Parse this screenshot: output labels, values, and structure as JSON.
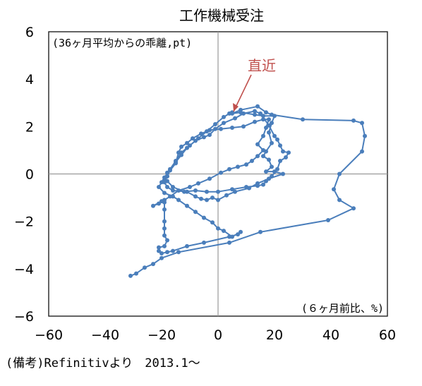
{
  "chart_data": {
    "type": "scatter",
    "title": "工作機械受注",
    "inner_label": "(36ヶ月平均からの乖離,pt)",
    "x_unit_label": "(６ヶ月前比、%)",
    "source_note": "(備考)Refinitivより　2013.1～",
    "annotation": {
      "text": "直近",
      "color": "#c0504d"
    },
    "xlim": [
      -60,
      60
    ],
    "ylim": [
      -6,
      6
    ],
    "x_ticks": [
      -60,
      -40,
      -20,
      0,
      20,
      40,
      60
    ],
    "y_ticks": [
      -6,
      -4,
      -2,
      0,
      2,
      4,
      6
    ],
    "x_tick_labels": [
      "−60",
      "−40",
      "−20",
      "0",
      "20",
      "40",
      "60"
    ],
    "y_tick_labels": [
      "−6",
      "−4",
      "−2",
      "0",
      "2",
      "4",
      "6"
    ],
    "grid": false,
    "series_color": "#4a7ebb",
    "series": [
      {
        "name": "",
        "points": [
          [
            -31,
            -4.3
          ],
          [
            -29,
            -4.2
          ],
          [
            -26,
            -3.95
          ],
          [
            -23,
            -3.8
          ],
          [
            -20,
            -3.55
          ],
          [
            -14,
            -3.3
          ],
          [
            4,
            -2.9
          ],
          [
            15,
            -2.45
          ],
          [
            39,
            -1.95
          ],
          [
            48,
            -1.45
          ],
          [
            43,
            -1.1
          ],
          [
            41,
            -0.65
          ],
          [
            43,
            0
          ],
          [
            51,
            0.95
          ],
          [
            52,
            1.6
          ],
          [
            51,
            2.15
          ],
          [
            48,
            2.25
          ],
          [
            30,
            2.3
          ],
          [
            19,
            2.5
          ],
          [
            17,
            2.6
          ],
          [
            14,
            2.85
          ],
          [
            8,
            2.7
          ],
          [
            5,
            2.55
          ],
          [
            8,
            2.6
          ],
          [
            13,
            2.5
          ],
          [
            16,
            2.45
          ],
          [
            20,
            2.45
          ],
          [
            19,
            2.15
          ],
          [
            18,
            1.75
          ],
          [
            19,
            1.3
          ],
          [
            17,
            0.95
          ],
          [
            16,
            0.75
          ],
          [
            18,
            0.6
          ],
          [
            19,
            0.3
          ],
          [
            17,
            0.1
          ],
          [
            20,
            0.1
          ],
          [
            23,
            0
          ],
          [
            18,
            -0.2
          ],
          [
            14,
            -0.4
          ],
          [
            11,
            -0.6
          ],
          [
            6,
            -0.75
          ],
          [
            3,
            -0.9
          ],
          [
            0,
            -1.1
          ],
          [
            -2,
            -1.0
          ],
          [
            -4,
            -1.1
          ],
          [
            -6,
            -1.05
          ],
          [
            -8,
            -0.95
          ],
          [
            -11,
            -0.75
          ],
          [
            -16,
            -0.7
          ],
          [
            -18,
            -0.55
          ],
          [
            -19,
            -0.35
          ],
          [
            -18,
            -0.1
          ],
          [
            -18,
            0.05
          ],
          [
            -15,
            0.5
          ],
          [
            -13,
            0.8
          ],
          [
            -11,
            1.1
          ],
          [
            -8,
            1.4
          ],
          [
            -5,
            1.55
          ],
          [
            -3,
            1.65
          ],
          [
            -1,
            1.9
          ],
          [
            2,
            2.15
          ],
          [
            6,
            2.35
          ],
          [
            9,
            2.55
          ],
          [
            13,
            2.65
          ],
          [
            15,
            2.55
          ],
          [
            18,
            2.05
          ],
          [
            20,
            1.6
          ],
          [
            21,
            1.45
          ],
          [
            22,
            1.2
          ],
          [
            23,
            0.95
          ],
          [
            25,
            0.9
          ],
          [
            24,
            0.7
          ],
          [
            22,
            0.55
          ],
          [
            21,
            0.2
          ],
          [
            19,
            -0.1
          ],
          [
            17,
            -0.3
          ],
          [
            16,
            -0.45
          ],
          [
            14,
            -0.5
          ],
          [
            10,
            -0.55
          ],
          [
            5,
            -0.65
          ],
          [
            0,
            -0.75
          ],
          [
            -4,
            -0.75
          ],
          [
            -8,
            -0.7
          ],
          [
            -12,
            -0.75
          ],
          [
            -16,
            -0.55
          ],
          [
            -18,
            -0.3
          ],
          [
            -19,
            -0.25
          ],
          [
            -18,
            -0.1
          ],
          [
            -17,
            0.15
          ],
          [
            -15,
            0.45
          ],
          [
            -14,
            0.9
          ],
          [
            -13,
            1.15
          ],
          [
            -11,
            1.3
          ],
          [
            -9,
            1.5
          ],
          [
            -6,
            1.7
          ],
          [
            -3,
            1.85
          ],
          [
            1,
            1.9
          ],
          [
            5,
            1.95
          ],
          [
            9,
            2.0
          ],
          [
            13,
            2.2
          ],
          [
            16,
            2.3
          ],
          [
            18,
            2.3
          ],
          [
            17,
            1.95
          ],
          [
            16,
            1.6
          ],
          [
            14,
            1.25
          ],
          [
            16,
            1.0
          ],
          [
            14,
            0.75
          ],
          [
            12,
            0.55
          ],
          [
            10,
            0.4
          ],
          [
            7,
            0.3
          ],
          [
            4,
            0.2
          ],
          [
            1,
            0.05
          ],
          [
            -3,
            -0.2
          ],
          [
            -7,
            -0.4
          ],
          [
            -10,
            -0.55
          ],
          [
            -14,
            -0.7
          ],
          [
            -17,
            -0.95
          ],
          [
            -19,
            -1.1
          ],
          [
            -21,
            -1.25
          ],
          [
            -23,
            -1.35
          ],
          [
            -20,
            -1.15
          ],
          [
            -19,
            -1.2
          ],
          [
            -19,
            -1.5
          ],
          [
            -19,
            -2.0
          ],
          [
            -19,
            -2.3
          ],
          [
            -19,
            -2.6
          ],
          [
            -18,
            -2.8
          ],
          [
            -19,
            -3.05
          ],
          [
            -21,
            -3.1
          ],
          [
            -21,
            -3.25
          ],
          [
            -20,
            -3.35
          ],
          [
            -18,
            -3.3
          ],
          [
            -16,
            -3.25
          ],
          [
            -11,
            -3.05
          ],
          [
            -5,
            -2.9
          ],
          [
            4,
            -2.65
          ],
          [
            7,
            -2.55
          ],
          [
            8,
            -2.45
          ],
          [
            5,
            -2.65
          ],
          [
            2,
            -2.4
          ],
          [
            0,
            -2.3
          ],
          [
            -2,
            -2.05
          ],
          [
            -5,
            -1.85
          ],
          [
            -8,
            -1.6
          ],
          [
            -11,
            -1.35
          ],
          [
            -14,
            -1.1
          ],
          [
            -16,
            -0.95
          ],
          [
            -19,
            -0.8
          ],
          [
            -21,
            -0.55
          ],
          [
            -20,
            -0.35
          ],
          [
            -19,
            -0.15
          ],
          [
            -17,
            0.2
          ],
          [
            -15,
            0.55
          ],
          [
            -13,
            0.9
          ],
          [
            -10,
            1.2
          ],
          [
            -7,
            1.5
          ],
          [
            -4,
            1.8
          ],
          [
            -1,
            2.1
          ],
          [
            2,
            2.4
          ],
          [
            4,
            2.55
          ],
          [
            5,
            2.6
          ]
        ]
      }
    ]
  }
}
